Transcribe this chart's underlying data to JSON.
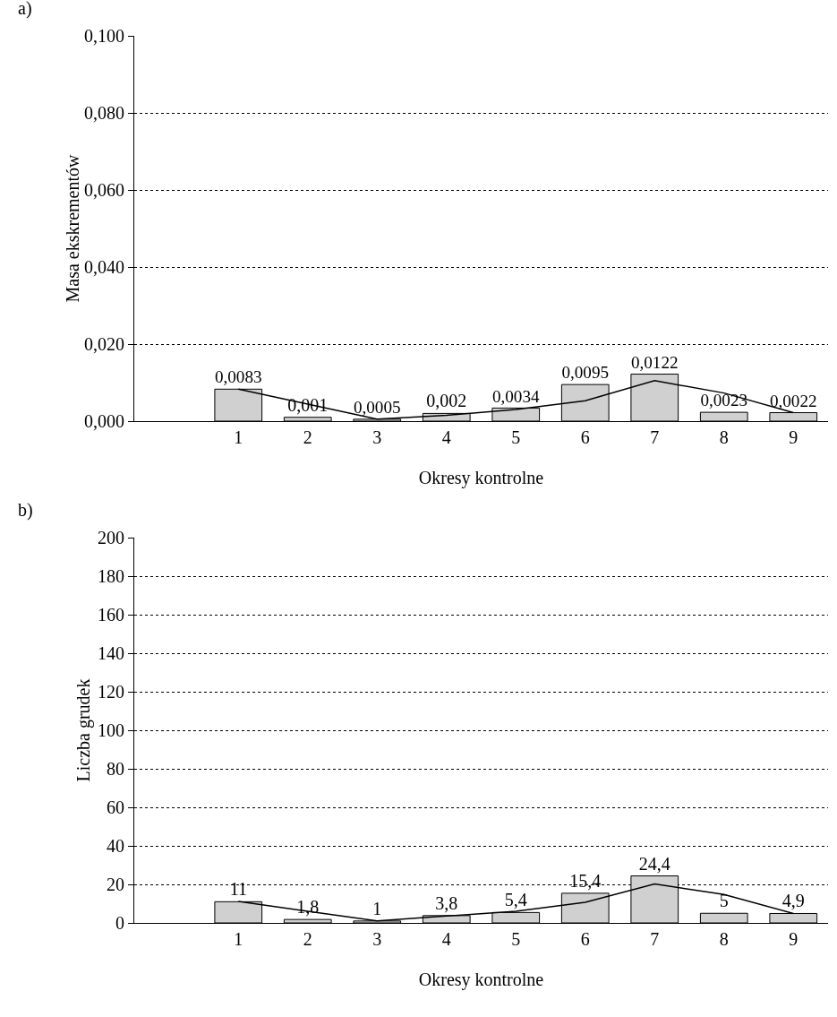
{
  "chart_data": [
    {
      "type": "bar",
      "xlabel": "Okresy kontrolne",
      "ylabel": "Masa ekskrementów",
      "annotations": [
        "a)"
      ],
      "categories": [
        null,
        "1",
        "2",
        "3",
        "4",
        "5",
        "6",
        "7",
        "8",
        "9"
      ],
      "series": [
        {
          "color": "#d0d0d0",
          "values": [
            null,
            0.0083,
            0.001,
            0.0005,
            0.002,
            0.0034,
            0.0095,
            0.0122,
            0.0023,
            0.0022
          ],
          "value_labels": [
            null,
            "0,0083",
            "0,001",
            "0,0005",
            "0,002",
            "0,0034",
            "0,0095",
            "0,0122",
            "0,0023",
            "0,0022"
          ]
        },
        {
          "type": "line",
          "color": "#000000",
          "values": [
            null,
            0.0083,
            0.0044,
            0.0005,
            0.0015,
            0.003,
            0.0053,
            0.0105,
            0.0073,
            0.0022
          ]
        }
      ],
      "ylim": [
        0,
        0.1
      ],
      "yticks": [
        {
          "value": 0,
          "label": "0,000"
        },
        {
          "value": 0.02,
          "label": "0,020"
        },
        {
          "value": 0.04,
          "label": "0,040"
        },
        {
          "value": 0.06,
          "label": "0,060"
        },
        {
          "value": 0.08,
          "label": "0,080"
        },
        {
          "value": 0.1,
          "label": "0,100"
        }
      ],
      "grid": "y",
      "marker": "none",
      "line_style": "solid"
    },
    {
      "type": "bar",
      "xlabel": "Okresy kontrolne",
      "ylabel": "Liczba grudek",
      "annotations": [
        "b)"
      ],
      "categories": [
        null,
        "1",
        "2",
        "3",
        "4",
        "5",
        "6",
        "7",
        "8",
        "9"
      ],
      "series": [
        {
          "color": "#d0d0d0",
          "values": [
            null,
            11,
            1.8,
            1,
            3.8,
            5.4,
            15.4,
            24.4,
            5,
            4.9
          ],
          "value_labels": [
            null,
            "11",
            "1,8",
            "1",
            "3,8",
            "5,4",
            "15,4",
            "24,4",
            "5",
            "4,9"
          ]
        },
        {
          "type": "line",
          "color": "#000000",
          "values": [
            null,
            11.2,
            6,
            1,
            3.6,
            6,
            10.7,
            20.2,
            14.8,
            4.9
          ]
        }
      ],
      "ylim": [
        0,
        200
      ],
      "yticks": [
        0,
        20,
        40,
        60,
        80,
        100,
        120,
        140,
        160,
        180,
        200
      ],
      "grid": "y",
      "marker": "none",
      "line_style": "solid"
    }
  ]
}
